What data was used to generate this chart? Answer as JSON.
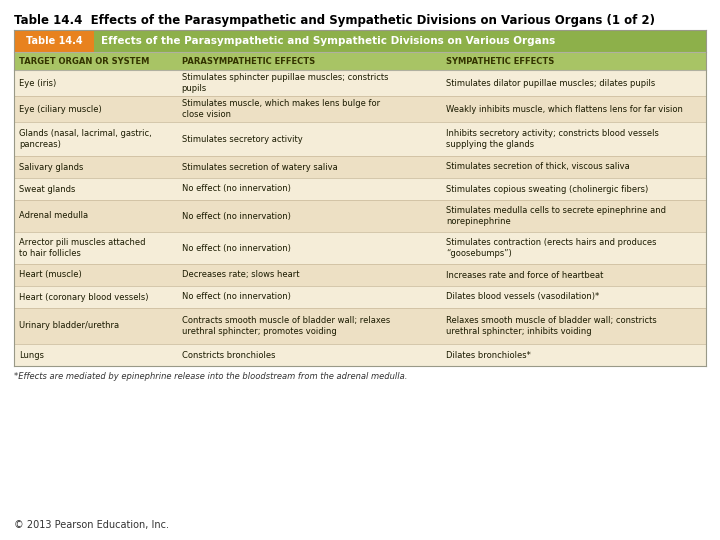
{
  "title": "Table 14.4  Effects of the Parasympathetic and Sympathetic Divisions on Various Organs (1 of 2)",
  "header_box_label": "Table 14.4",
  "header_box_color": "#E8821E",
  "header_title": "Effects of the Parasympathetic and Sympathetic Divisions on Various Organs",
  "header_bg_color": "#8DB04A",
  "col_headers": [
    "TARGET ORGAN OR SYSTEM",
    "PARASYMPATHETIC EFFECTS",
    "SYMPATHETIC EFFECTS"
  ],
  "col_header_bg": "#A8C465",
  "col_header_text_color": "#333300",
  "row_bg_even": "#F5EDD8",
  "row_bg_odd": "#EDE0C4",
  "text_color": "#1A1A00",
  "footnote": "*Effects are mediated by epinephrine release into the bloodstream from the adrenal medulla.",
  "footnote2": "© 2013 Pearson Education, Inc.",
  "col_props": [
    0.235,
    0.382,
    0.383
  ],
  "rows": [
    [
      "Eye (iris)",
      "Stimulates sphincter pupillae muscles; constricts\npupils",
      "Stimulates dilator pupillae muscles; dilates pupils"
    ],
    [
      "Eye (ciliary muscle)",
      "Stimulates muscle, which makes lens bulge for\nclose vision",
      "Weakly inhibits muscle, which flattens lens for far vision"
    ],
    [
      "Glands (nasal, lacrimal, gastric,\npancreas)",
      "Stimulates secretory activity",
      "Inhibits secretory activity; constricts blood vessels\nsupplying the glands"
    ],
    [
      "Salivary glands",
      "Stimulates secretion of watery saliva",
      "Stimulates secretion of thick, viscous saliva"
    ],
    [
      "Sweat glands",
      "No effect (no innervation)",
      "Stimulates copious sweating (cholinergic fibers)"
    ],
    [
      "Adrenal medulla",
      "No effect (no innervation)",
      "Stimulates medulla cells to secrete epinephrine and\nnorepinephrine"
    ],
    [
      "Arrector pili muscles attached\nto hair follicles",
      "No effect (no innervation)",
      "Stimulates contraction (erects hairs and produces\n“goosebumps”)"
    ],
    [
      "Heart (muscle)",
      "Decreases rate; slows heart",
      "Increases rate and force of heartbeat"
    ],
    [
      "Heart (coronary blood vessels)",
      "No effect (no innervation)",
      "Dilates blood vessels (vasodilation)*"
    ],
    [
      "Urinary bladder/urethra",
      "Contracts smooth muscle of bladder wall; relaxes\nurethral sphincter; promotes voiding",
      "Relaxes smooth muscle of bladder wall; constricts\nurethral sphincter; inhibits voiding"
    ],
    [
      "Lungs",
      "Constricts bronchioles",
      "Dilates bronchioles*"
    ]
  ]
}
